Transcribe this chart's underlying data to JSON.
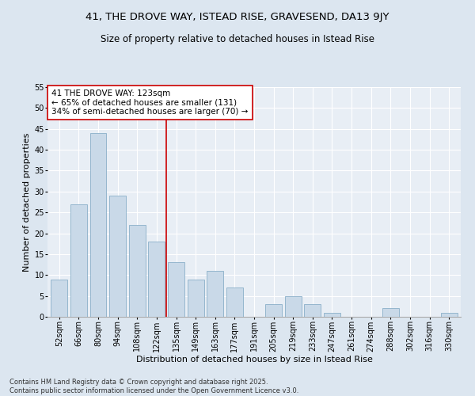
{
  "title": "41, THE DROVE WAY, ISTEAD RISE, GRAVESEND, DA13 9JY",
  "subtitle": "Size of property relative to detached houses in Istead Rise",
  "xlabel": "Distribution of detached houses by size in Istead Rise",
  "ylabel": "Number of detached properties",
  "categories": [
    "52sqm",
    "66sqm",
    "80sqm",
    "94sqm",
    "108sqm",
    "122sqm",
    "135sqm",
    "149sqm",
    "163sqm",
    "177sqm",
    "191sqm",
    "205sqm",
    "219sqm",
    "233sqm",
    "247sqm",
    "261sqm",
    "274sqm",
    "288sqm",
    "302sqm",
    "316sqm",
    "330sqm"
  ],
  "values": [
    9,
    27,
    44,
    29,
    22,
    18,
    13,
    9,
    11,
    7,
    0,
    3,
    5,
    3,
    1,
    0,
    0,
    2,
    0,
    0,
    1
  ],
  "bar_color": "#c9d9e8",
  "bar_edge_color": "#8aafc8",
  "vline_color": "#cc0000",
  "annotation_text": "41 THE DROVE WAY: 123sqm\n← 65% of detached houses are smaller (131)\n34% of semi-detached houses are larger (70) →",
  "annotation_box_color": "white",
  "annotation_box_edge": "#cc0000",
  "ylim": [
    0,
    55
  ],
  "yticks": [
    0,
    5,
    10,
    15,
    20,
    25,
    30,
    35,
    40,
    45,
    50,
    55
  ],
  "bg_color": "#dce6f0",
  "plot_bg_color": "#e8eef5",
  "footer": "Contains HM Land Registry data © Crown copyright and database right 2025.\nContains public sector information licensed under the Open Government Licence v3.0.",
  "title_fontsize": 9.5,
  "subtitle_fontsize": 8.5,
  "xlabel_fontsize": 8,
  "ylabel_fontsize": 8,
  "tick_fontsize": 7,
  "annotation_fontsize": 7.5,
  "footer_fontsize": 6
}
